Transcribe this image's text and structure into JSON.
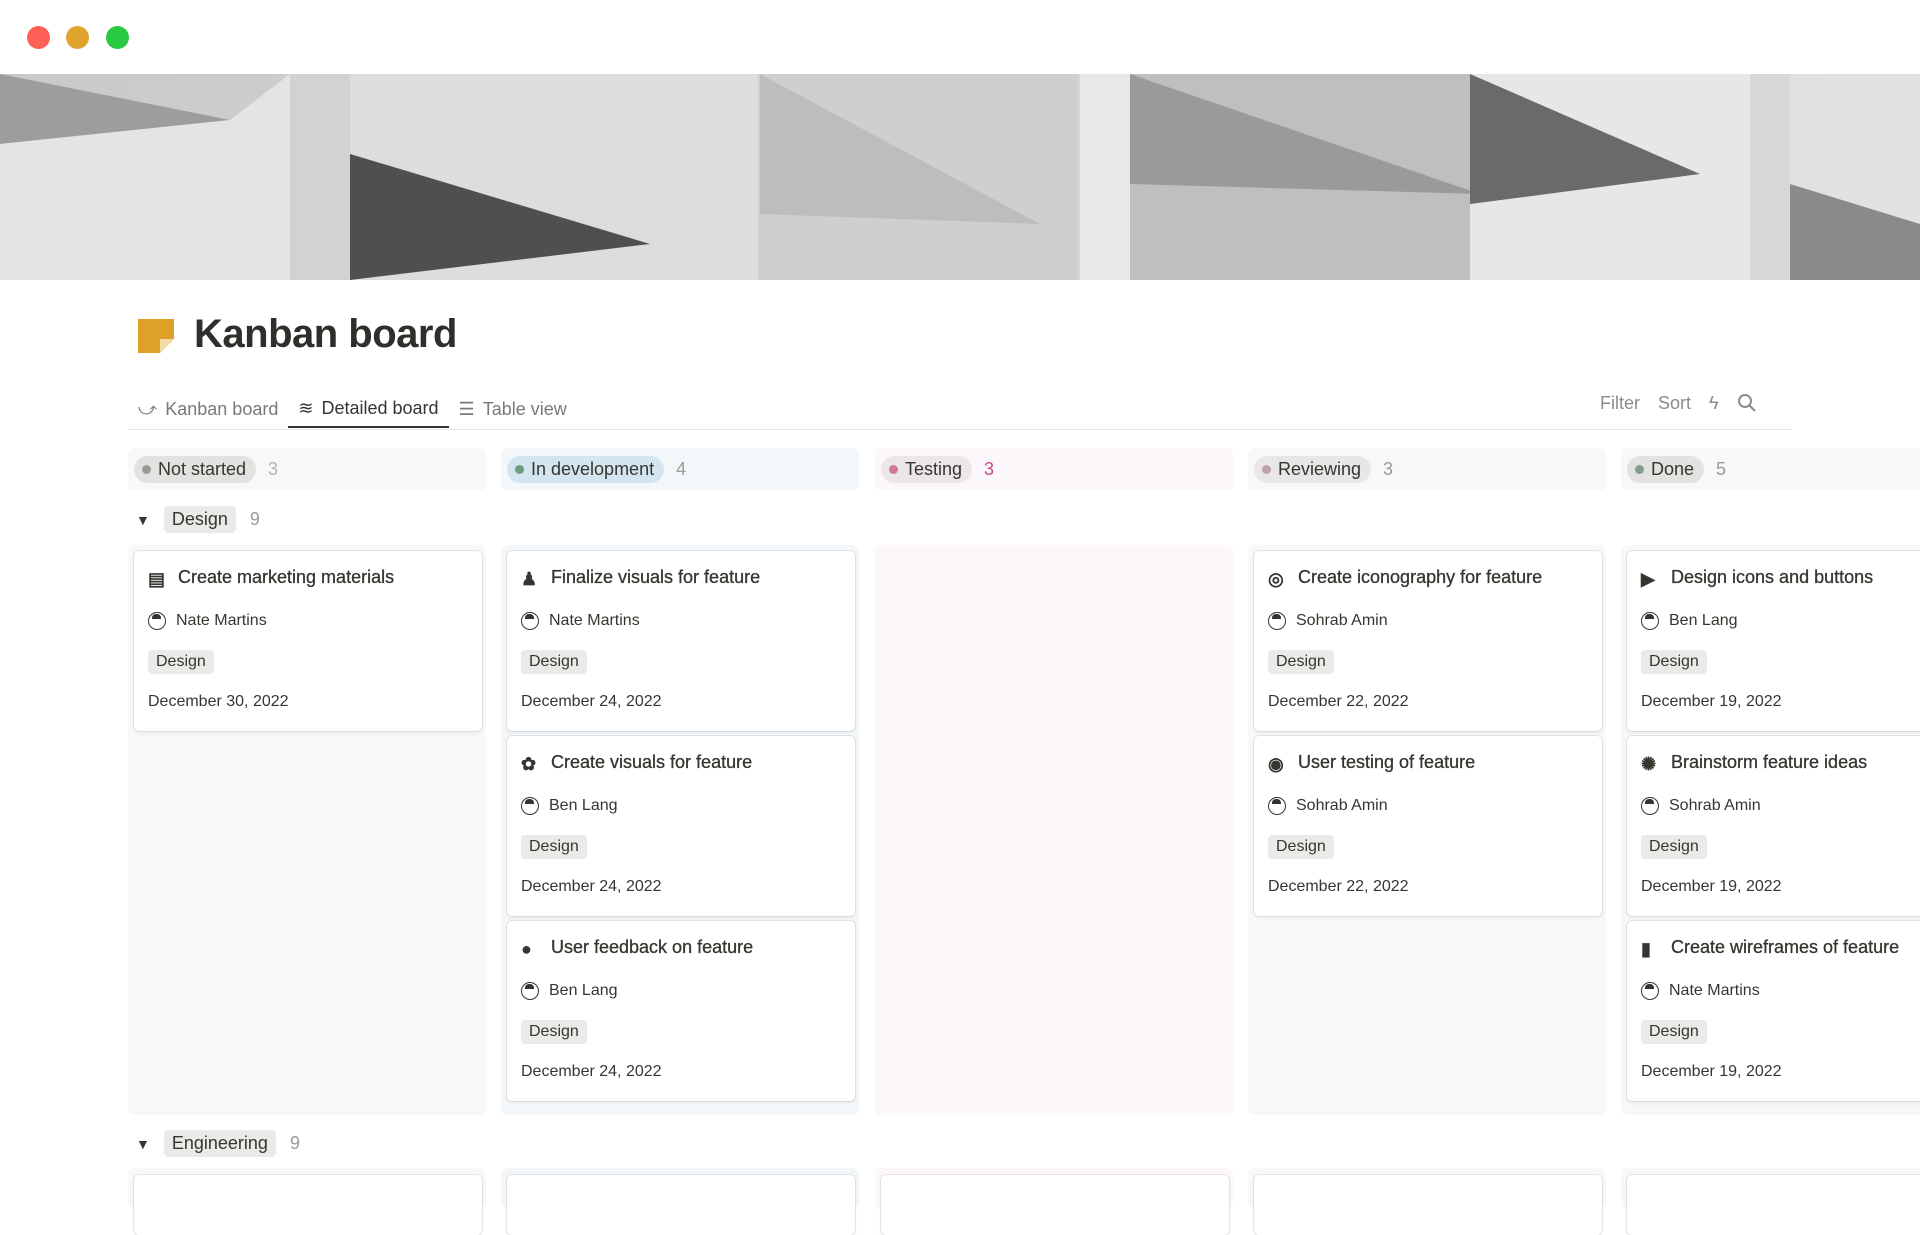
{
  "window": {
    "controls": [
      "close",
      "minimize",
      "maximize"
    ],
    "colors": {
      "close": "#fe5f57",
      "minimize": "#e0a32e",
      "maximize": "#28c840"
    }
  },
  "page": {
    "title": "Kanban board",
    "icon": "sticky-note-icon",
    "icon_color": "#dfa128"
  },
  "tabs": [
    {
      "label": "Kanban board",
      "icon": "kanban-icon",
      "active": false
    },
    {
      "label": "Detailed board",
      "icon": "waves-icon",
      "active": true
    },
    {
      "label": "Table view",
      "icon": "list-icon",
      "active": false
    }
  ],
  "toolbar": {
    "filter": "Filter",
    "sort": "Sort",
    "automation_icon": "lightning-icon",
    "search_icon": "search-icon"
  },
  "columns": [
    {
      "label": "Not started",
      "count": "3",
      "dot": "#9b9a97",
      "pill": "#e3e2e0",
      "bg": "#f8f8f7",
      "count_color": "#b4b4b0"
    },
    {
      "label": "In development",
      "count": "4",
      "dot": "#6c9b7d",
      "pill": "#d3e5ef",
      "bg": "#f3f7f9",
      "count_color": "#9b9a97"
    },
    {
      "label": "Testing",
      "count": "3",
      "dot": "#d4769b",
      "pill": "#ebe7e9",
      "bg": "#fcf7fa",
      "count_color": "#c14c8a"
    },
    {
      "label": "Reviewing",
      "count": "3",
      "dot": "#c0a0ae",
      "pill": "#e8e6e6",
      "bg": "#f9f8f9",
      "count_color": "#9b9a97"
    },
    {
      "label": "Done",
      "count": "5",
      "dot": "#7f9c8f",
      "pill": "#e3e2e0",
      "bg": "#f7f8f8",
      "count_color": "#9b9a97"
    }
  ],
  "groups": [
    {
      "label": "Design",
      "count": "9",
      "cards": [
        [
          {
            "title": "Create marketing materials",
            "icon": "newspaper-icon",
            "person": "Nate Martins",
            "tag": "Design",
            "date": "December 30, 2022"
          }
        ],
        [
          {
            "title": "Finalize visuals for feature",
            "icon": "stamp-icon",
            "person": "Nate Martins",
            "tag": "Design",
            "date": "December 24, 2022"
          },
          {
            "title": "Create visuals for feature",
            "icon": "palette-icon",
            "person": "Ben Lang",
            "tag": "Design",
            "date": "December 24, 2022"
          },
          {
            "title": "User feedback on feature",
            "icon": "chat-bubble-icon",
            "person": "Ben Lang",
            "tag": "Design",
            "date": "December 24, 2022"
          }
        ],
        [],
        [
          {
            "title": "Create iconography for feature",
            "icon": "target-icon",
            "person": "Sohrab Amin",
            "tag": "Design",
            "date": "December 22, 2022"
          },
          {
            "title": "User testing of feature",
            "icon": "user-circle-icon",
            "person": "Sohrab Amin",
            "tag": "Design",
            "date": "December 22, 2022"
          }
        ],
        [
          {
            "title": "Design icons and buttons",
            "icon": "play-circle-icon",
            "person": "Ben Lang",
            "tag": "Design",
            "date": "December 19, 2022"
          },
          {
            "title": "Brainstorm feature ideas",
            "icon": "brain-icon",
            "person": "Sohrab Amin",
            "tag": "Design",
            "date": "December 19, 2022"
          },
          {
            "title": "Create wireframes of feature",
            "icon": "phone-icon",
            "person": "Nate Martins",
            "tag": "Design",
            "date": "December 19, 2022"
          }
        ]
      ]
    },
    {
      "label": "Engineering",
      "count": "9"
    }
  ]
}
